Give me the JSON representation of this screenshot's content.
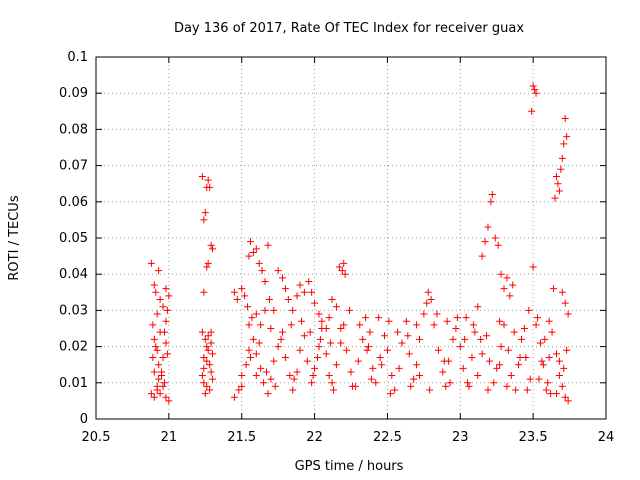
{
  "chart_data": {
    "type": "scatter",
    "title": "Day 136 of 2017, Rate Of TEC Index for receiver guax",
    "xlabel": "GPS time / hours",
    "ylabel": "ROTI / TECUs",
    "xlim": [
      20.5,
      24
    ],
    "ylim": [
      0,
      0.1
    ],
    "x_ticks": [
      "20.5",
      "21",
      "21.5",
      "22",
      "22.5",
      "23",
      "23.5",
      "24"
    ],
    "y_ticks": [
      "0",
      "0.01",
      "0.02",
      "0.03",
      "0.04",
      "0.05",
      "0.06",
      "0.07",
      "0.08",
      "0.09",
      "0.1"
    ],
    "grid": true,
    "marker": "+",
    "marker_color": "#ff0000",
    "series": [
      {
        "points": [
          [
            20.88,
            0.043
          ],
          [
            20.9,
            0.037
          ],
          [
            20.91,
            0.035
          ],
          [
            20.93,
            0.041
          ],
          [
            20.92,
            0.029
          ],
          [
            20.94,
            0.033
          ],
          [
            20.96,
            0.031
          ],
          [
            20.98,
            0.036
          ],
          [
            21.0,
            0.034
          ],
          [
            20.99,
            0.03
          ],
          [
            20.89,
            0.026
          ],
          [
            20.9,
            0.022
          ],
          [
            20.92,
            0.019
          ],
          [
            20.93,
            0.015
          ],
          [
            20.95,
            0.012
          ],
          [
            20.96,
            0.017
          ],
          [
            20.98,
            0.021
          ],
          [
            20.97,
            0.024
          ],
          [
            20.91,
            0.02
          ],
          [
            20.89,
            0.017
          ],
          [
            20.88,
            0.007
          ],
          [
            20.9,
            0.006
          ],
          [
            20.92,
            0.008
          ],
          [
            20.94,
            0.007
          ],
          [
            20.96,
            0.009
          ],
          [
            20.98,
            0.006
          ],
          [
            21.0,
            0.005
          ],
          [
            20.97,
            0.01
          ],
          [
            20.93,
            0.011
          ],
          [
            20.95,
            0.013
          ],
          [
            20.99,
            0.018
          ],
          [
            20.98,
            0.027
          ],
          [
            20.94,
            0.024
          ],
          [
            20.9,
            0.013
          ],
          [
            20.92,
            0.009
          ],
          [
            21.23,
            0.067
          ],
          [
            21.24,
            0.055
          ],
          [
            21.25,
            0.057
          ],
          [
            21.26,
            0.064
          ],
          [
            21.27,
            0.066
          ],
          [
            21.28,
            0.064
          ],
          [
            21.29,
            0.048
          ],
          [
            21.3,
            0.047
          ],
          [
            21.27,
            0.043
          ],
          [
            21.26,
            0.042
          ],
          [
            21.24,
            0.035
          ],
          [
            21.23,
            0.024
          ],
          [
            21.25,
            0.022
          ],
          [
            21.27,
            0.019
          ],
          [
            21.29,
            0.021
          ],
          [
            21.3,
            0.018
          ],
          [
            21.28,
            0.015
          ],
          [
            21.26,
            0.016
          ],
          [
            21.24,
            0.014
          ],
          [
            21.23,
            0.012
          ],
          [
            21.24,
            0.01
          ],
          [
            21.26,
            0.009
          ],
          [
            21.28,
            0.008
          ],
          [
            21.3,
            0.011
          ],
          [
            21.25,
            0.007
          ],
          [
            21.29,
            0.024
          ],
          [
            21.27,
            0.023
          ],
          [
            21.24,
            0.017
          ],
          [
            21.29,
            0.013
          ],
          [
            21.26,
            0.02
          ],
          [
            21.45,
            0.035
          ],
          [
            21.47,
            0.033
          ],
          [
            21.5,
            0.036
          ],
          [
            21.52,
            0.034
          ],
          [
            21.55,
            0.045
          ],
          [
            21.56,
            0.049
          ],
          [
            21.58,
            0.046
          ],
          [
            21.6,
            0.047
          ],
          [
            21.62,
            0.043
          ],
          [
            21.64,
            0.041
          ],
          [
            21.66,
            0.038
          ],
          [
            21.68,
            0.048
          ],
          [
            21.54,
            0.031
          ],
          [
            21.57,
            0.028
          ],
          [
            21.6,
            0.029
          ],
          [
            21.63,
            0.026
          ],
          [
            21.66,
            0.03
          ],
          [
            21.69,
            0.033
          ],
          [
            21.72,
            0.03
          ],
          [
            21.75,
            0.041
          ],
          [
            21.78,
            0.039
          ],
          [
            21.8,
            0.036
          ],
          [
            21.82,
            0.033
          ],
          [
            21.85,
            0.03
          ],
          [
            21.88,
            0.034
          ],
          [
            21.9,
            0.037
          ],
          [
            21.93,
            0.035
          ],
          [
            21.96,
            0.038
          ],
          [
            21.98,
            0.035
          ],
          [
            22.0,
            0.032
          ],
          [
            22.03,
            0.029
          ],
          [
            22.05,
            0.027
          ],
          [
            22.08,
            0.025
          ],
          [
            22.1,
            0.028
          ],
          [
            22.12,
            0.033
          ],
          [
            22.15,
            0.031
          ],
          [
            22.17,
            0.042
          ],
          [
            22.19,
            0.041
          ],
          [
            22.21,
            0.04
          ],
          [
            22.2,
            0.043
          ],
          [
            21.45,
            0.006
          ],
          [
            21.48,
            0.008
          ],
          [
            21.5,
            0.012
          ],
          [
            21.53,
            0.015
          ],
          [
            21.55,
            0.019
          ],
          [
            21.58,
            0.022
          ],
          [
            21.6,
            0.018
          ],
          [
            21.63,
            0.014
          ],
          [
            21.65,
            0.01
          ],
          [
            21.68,
            0.007
          ],
          [
            21.7,
            0.011
          ],
          [
            21.72,
            0.016
          ],
          [
            21.75,
            0.02
          ],
          [
            21.78,
            0.024
          ],
          [
            21.8,
            0.017
          ],
          [
            21.83,
            0.012
          ],
          [
            21.85,
            0.008
          ],
          [
            21.88,
            0.013
          ],
          [
            21.9,
            0.019
          ],
          [
            21.93,
            0.023
          ],
          [
            21.95,
            0.016
          ],
          [
            21.98,
            0.01
          ],
          [
            22.0,
            0.014
          ],
          [
            22.03,
            0.02
          ],
          [
            22.05,
            0.025
          ],
          [
            22.08,
            0.018
          ],
          [
            22.1,
            0.012
          ],
          [
            22.13,
            0.008
          ],
          [
            22.15,
            0.015
          ],
          [
            22.18,
            0.021
          ],
          [
            22.2,
            0.026
          ],
          [
            22.22,
            0.019
          ],
          [
            22.25,
            0.013
          ],
          [
            22.28,
            0.009
          ],
          [
            22.3,
            0.016
          ],
          [
            22.33,
            0.022
          ],
          [
            22.35,
            0.028
          ],
          [
            22.37,
            0.02
          ],
          [
            22.4,
            0.014
          ],
          [
            22.42,
            0.01
          ],
          [
            22.45,
            0.017
          ],
          [
            22.48,
            0.023
          ],
          [
            22.5,
            0.019
          ],
          [
            22.53,
            0.012
          ],
          [
            22.55,
            0.008
          ],
          [
            22.58,
            0.014
          ],
          [
            22.6,
            0.021
          ],
          [
            22.63,
            0.027
          ],
          [
            22.65,
            0.018
          ],
          [
            22.68,
            0.011
          ],
          [
            22.7,
            0.015
          ],
          [
            22.72,
            0.022
          ],
          [
            22.75,
            0.029
          ],
          [
            22.78,
            0.035
          ],
          [
            22.8,
            0.033
          ],
          [
            22.82,
            0.026
          ],
          [
            22.85,
            0.019
          ],
          [
            22.88,
            0.013
          ],
          [
            22.9,
            0.009
          ],
          [
            22.92,
            0.016
          ],
          [
            22.95,
            0.022
          ],
          [
            22.98,
            0.028
          ],
          [
            23.0,
            0.02
          ],
          [
            23.02,
            0.014
          ],
          [
            23.05,
            0.01
          ],
          [
            23.08,
            0.017
          ],
          [
            23.1,
            0.024
          ],
          [
            23.12,
            0.031
          ],
          [
            23.15,
            0.045
          ],
          [
            23.17,
            0.049
          ],
          [
            23.19,
            0.053
          ],
          [
            23.21,
            0.06
          ],
          [
            23.22,
            0.062
          ],
          [
            23.24,
            0.05
          ],
          [
            23.26,
            0.048
          ],
          [
            23.28,
            0.04
          ],
          [
            23.3,
            0.036
          ],
          [
            23.32,
            0.039
          ],
          [
            23.34,
            0.034
          ],
          [
            23.36,
            0.037
          ],
          [
            23.12,
            0.012
          ],
          [
            23.15,
            0.018
          ],
          [
            23.18,
            0.023
          ],
          [
            23.2,
            0.016
          ],
          [
            23.23,
            0.01
          ],
          [
            23.25,
            0.014
          ],
          [
            23.28,
            0.02
          ],
          [
            23.3,
            0.026
          ],
          [
            23.33,
            0.019
          ],
          [
            23.35,
            0.012
          ],
          [
            23.38,
            0.008
          ],
          [
            23.4,
            0.015
          ],
          [
            23.42,
            0.022
          ],
          [
            23.45,
            0.017
          ],
          [
            23.48,
            0.011
          ],
          [
            23.5,
            0.092
          ],
          [
            23.51,
            0.091
          ],
          [
            23.52,
            0.09
          ],
          [
            23.49,
            0.085
          ],
          [
            23.5,
            0.042
          ],
          [
            23.53,
            0.028
          ],
          [
            23.55,
            0.021
          ],
          [
            23.57,
            0.015
          ],
          [
            23.6,
            0.01
          ],
          [
            23.62,
            0.007
          ],
          [
            23.64,
            0.036
          ],
          [
            23.65,
            0.061
          ],
          [
            23.66,
            0.067
          ],
          [
            23.67,
            0.065
          ],
          [
            23.68,
            0.063
          ],
          [
            23.69,
            0.069
          ],
          [
            23.7,
            0.072
          ],
          [
            23.71,
            0.076
          ],
          [
            23.72,
            0.083
          ],
          [
            23.73,
            0.078
          ],
          [
            23.7,
            0.035
          ],
          [
            23.72,
            0.032
          ],
          [
            23.74,
            0.029
          ],
          [
            23.73,
            0.019
          ],
          [
            23.71,
            0.014
          ],
          [
            23.7,
            0.009
          ],
          [
            23.72,
            0.006
          ],
          [
            23.74,
            0.005
          ],
          [
            23.68,
            0.012
          ],
          [
            23.66,
            0.018
          ],
          [
            23.63,
            0.024
          ],
          [
            23.61,
            0.027
          ],
          [
            23.58,
            0.022
          ],
          [
            23.56,
            0.016
          ],
          [
            23.54,
            0.011
          ],
          [
            21.55,
            0.026
          ],
          [
            21.62,
            0.021
          ],
          [
            21.7,
            0.025
          ],
          [
            21.77,
            0.022
          ],
          [
            21.84,
            0.026
          ],
          [
            21.91,
            0.027
          ],
          [
            21.97,
            0.024
          ],
          [
            22.04,
            0.022
          ],
          [
            22.11,
            0.021
          ],
          [
            22.18,
            0.025
          ],
          [
            22.24,
            0.03
          ],
          [
            22.31,
            0.026
          ],
          [
            22.38,
            0.024
          ],
          [
            22.44,
            0.028
          ],
          [
            22.51,
            0.027
          ],
          [
            22.57,
            0.024
          ],
          [
            22.64,
            0.023
          ],
          [
            22.7,
            0.026
          ],
          [
            22.77,
            0.032
          ],
          [
            22.84,
            0.029
          ],
          [
            22.91,
            0.027
          ],
          [
            22.97,
            0.025
          ],
          [
            23.04,
            0.028
          ],
          [
            23.09,
            0.026
          ],
          [
            23.14,
            0.022
          ],
          [
            23.27,
            0.027
          ],
          [
            23.37,
            0.024
          ],
          [
            23.44,
            0.025
          ],
          [
            23.47,
            0.03
          ],
          [
            23.52,
            0.026
          ],
          [
            21.5,
            0.009
          ],
          [
            21.6,
            0.012
          ],
          [
            21.73,
            0.009
          ],
          [
            21.86,
            0.011
          ],
          [
            21.99,
            0.012
          ],
          [
            22.12,
            0.01
          ],
          [
            22.26,
            0.009
          ],
          [
            22.39,
            0.011
          ],
          [
            22.52,
            0.007
          ],
          [
            22.66,
            0.009
          ],
          [
            22.79,
            0.008
          ],
          [
            22.93,
            0.01
          ],
          [
            23.06,
            0.009
          ],
          [
            23.19,
            0.008
          ],
          [
            23.32,
            0.009
          ],
          [
            23.46,
            0.008
          ],
          [
            23.59,
            0.008
          ],
          [
            23.66,
            0.007
          ],
          [
            21.56,
            0.017
          ],
          [
            22.02,
            0.017
          ],
          [
            22.46,
            0.015
          ],
          [
            22.89,
            0.016
          ],
          [
            23.27,
            0.015
          ],
          [
            23.61,
            0.017
          ],
          [
            21.67,
            0.013
          ],
          [
            22.36,
            0.019
          ],
          [
            22.72,
            0.012
          ],
          [
            23.03,
            0.022
          ],
          [
            23.41,
            0.017
          ],
          [
            23.68,
            0.016
          ]
        ]
      }
    ]
  }
}
